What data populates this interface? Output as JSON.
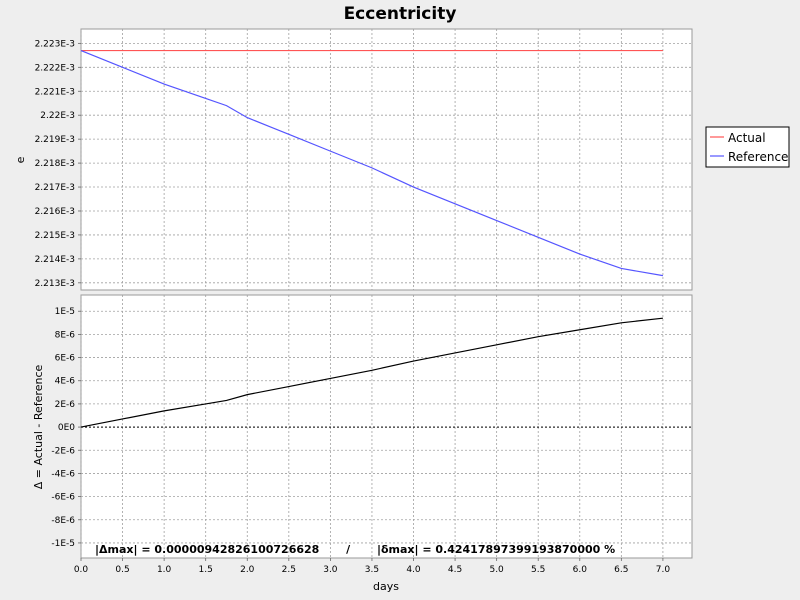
{
  "chart_data": {
    "type": "line",
    "title": "Eccentricity",
    "xlabel": "days",
    "xlim": [
      0,
      7.35
    ],
    "x_ticks": [
      "0.0",
      "0.5",
      "1.0",
      "1.5",
      "2.0",
      "2.5",
      "3.0",
      "3.5",
      "4.0",
      "4.5",
      "5.0",
      "5.5",
      "6.0",
      "6.5",
      "7.0"
    ],
    "grid": true,
    "legend_position": "right",
    "top_panel": {
      "ylabel": "e",
      "ylim": [
        0.0022127,
        0.0022236
      ],
      "y_ticks": [
        {
          "value": 0.002223,
          "label": "2.223E-3"
        },
        {
          "value": 0.002222,
          "label": "2.222E-3"
        },
        {
          "value": 0.002221,
          "label": "2.221E-3"
        },
        {
          "value": 0.00222,
          "label": "2.22E-3"
        },
        {
          "value": 0.002219,
          "label": "2.219E-3"
        },
        {
          "value": 0.002218,
          "label": "2.218E-3"
        },
        {
          "value": 0.002217,
          "label": "2.217E-3"
        },
        {
          "value": 0.002216,
          "label": "2.216E-3"
        },
        {
          "value": 0.002215,
          "label": "2.215E-3"
        },
        {
          "value": 0.002214,
          "label": "2.214E-3"
        },
        {
          "value": 0.002213,
          "label": "2.213E-3"
        }
      ],
      "series": [
        {
          "name": "Actual",
          "color": "#ff5555",
          "x": [
            0,
            7.0
          ],
          "y": [
            0.0022227,
            0.0022227
          ]
        },
        {
          "name": "Reference",
          "color": "#5555ff",
          "x": [
            0,
            0.5,
            1.0,
            1.5,
            1.75,
            2.0,
            2.5,
            3.0,
            3.5,
            4.0,
            4.5,
            5.0,
            5.5,
            6.0,
            6.5,
            7.0
          ],
          "y": [
            0.0022227,
            0.002222,
            0.0022213,
            0.0022207,
            0.0022204,
            0.0022199,
            0.0022192,
            0.0022185,
            0.0022178,
            0.002217,
            0.0022163,
            0.0022156,
            0.0022149,
            0.0022142,
            0.0022136,
            0.0022133
          ]
        }
      ]
    },
    "bottom_panel": {
      "ylabel": "Δ = Actual - Reference",
      "ylim": [
        -1.13e-05,
        1.14e-05
      ],
      "y_ticks": [
        {
          "value": 1e-05,
          "label": "1E-5"
        },
        {
          "value": 8e-06,
          "label": "8E-6"
        },
        {
          "value": 6e-06,
          "label": "6E-6"
        },
        {
          "value": 4e-06,
          "label": "4E-6"
        },
        {
          "value": 2e-06,
          "label": "2E-6"
        },
        {
          "value": 0,
          "label": "0E0"
        },
        {
          "value": -2e-06,
          "label": "-2E-6"
        },
        {
          "value": -4e-06,
          "label": "-4E-6"
        },
        {
          "value": -6e-06,
          "label": "-6E-6"
        },
        {
          "value": -8e-06,
          "label": "-8E-6"
        },
        {
          "value": -1e-05,
          "label": "-1E-5"
        }
      ],
      "series": [
        {
          "color": "#000000",
          "x": [
            0,
            0.5,
            1.0,
            1.5,
            1.75,
            2.0,
            2.5,
            3.0,
            3.5,
            4.0,
            4.5,
            5.0,
            5.5,
            6.0,
            6.5,
            7.0
          ],
          "y": [
            0,
            7e-07,
            1.4e-06,
            2e-06,
            2.3e-06,
            2.8e-06,
            3.5e-06,
            4.2e-06,
            4.9e-06,
            5.7e-06,
            6.4e-06,
            7.1e-06,
            7.8e-06,
            8.4e-06,
            9e-06,
            9.4e-06
          ]
        }
      ]
    },
    "annotation": "|Δmax| = 0.00000942826100726628       /       |δmax| = 0.42417897399193870000 %"
  }
}
